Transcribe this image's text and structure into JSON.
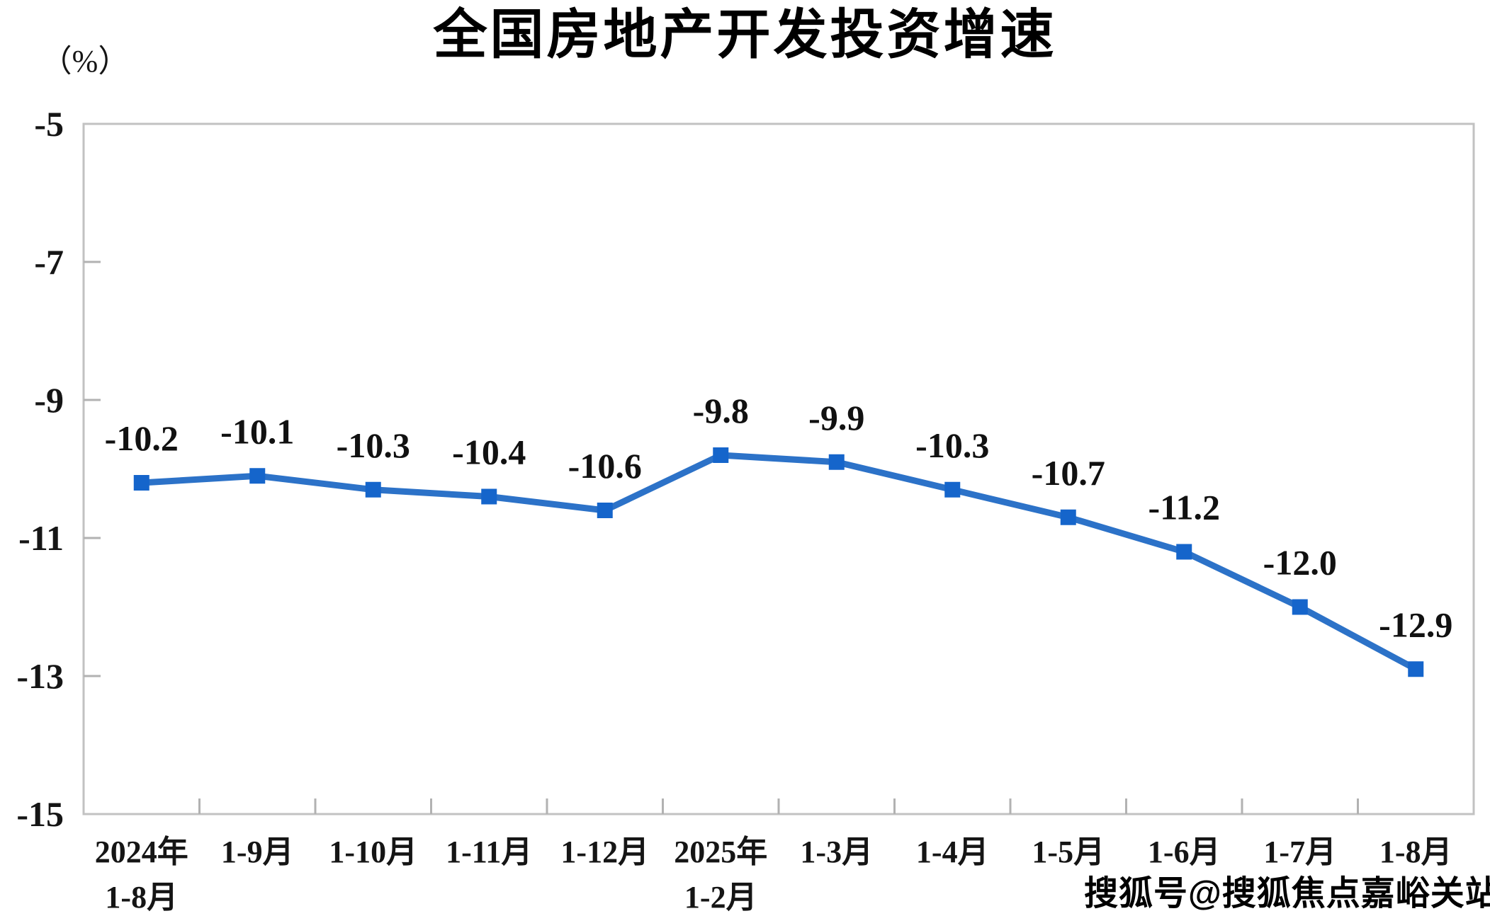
{
  "chart_data": {
    "type": "line",
    "title": "全国房地产开发投资增速",
    "unit_label": "（%）",
    "categories": [
      [
        "2024年",
        "1-8月"
      ],
      [
        "1-9月"
      ],
      [
        "1-10月"
      ],
      [
        "1-11月"
      ],
      [
        "1-12月"
      ],
      [
        "2025年",
        "1-2月"
      ],
      [
        "1-3月"
      ],
      [
        "1-4月"
      ],
      [
        "1-5月"
      ],
      [
        "1-6月"
      ],
      [
        "1-7月"
      ],
      [
        "1-8月"
      ]
    ],
    "values": [
      -10.2,
      -10.1,
      -10.3,
      -10.4,
      -10.6,
      -9.8,
      -9.9,
      -10.3,
      -10.7,
      -11.2,
      -12.0,
      -12.9
    ],
    "point_labels": [
      "-10.2",
      "-10.1",
      "-10.3",
      "-10.4",
      "-10.6",
      "-9.8",
      "-9.9",
      "-10.3",
      "-10.7",
      "-11.2",
      "-12.0",
      "-12.9"
    ],
    "ylim": [
      -15,
      -5
    ],
    "yticks": [
      -5,
      -7,
      -9,
      -11,
      -13,
      -15
    ],
    "xlabel": "",
    "ylabel": "（%）",
    "grid": false,
    "legend_position": "none",
    "marker_shape": "square"
  },
  "watermark": {
    "text": "搜狐号@搜狐焦点嘉峪关站"
  },
  "colors": {
    "line": "#2C72C8",
    "marker": "#1565CB",
    "axis": "#C2C2C2",
    "tick": "#B2B2B2",
    "text": "#151515",
    "title": "#000000",
    "background": "#FFFFFF"
  }
}
